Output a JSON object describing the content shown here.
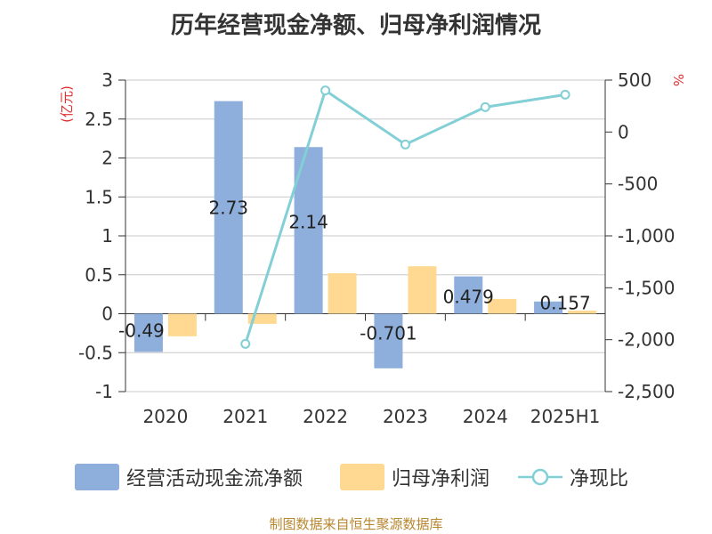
{
  "title": "历年经营现金净额、归母净利润情况",
  "source": "制图数据来自恒生聚源数据库",
  "colors": {
    "cash": "#8eaedb",
    "profit": "#ffd992",
    "ratio": "#82cfd6",
    "unit": "#e03030"
  },
  "chart_data": {
    "type": "bar",
    "categories": [
      "2020",
      "2021",
      "2022",
      "2023",
      "2024",
      "2025H1"
    ],
    "series": [
      {
        "name": "经营活动现金流净额",
        "type": "bar",
        "axis": "left",
        "values": [
          -0.49,
          2.73,
          2.14,
          -0.701,
          0.479,
          0.157
        ],
        "labels": [
          "-0.49",
          "2.73",
          "2.14",
          "-0.701",
          "0.479",
          "0.157"
        ]
      },
      {
        "name": "归母净利润",
        "type": "bar",
        "axis": "left",
        "values": [
          -0.29,
          -0.13,
          0.52,
          0.61,
          0.19,
          0.04
        ]
      },
      {
        "name": "净现比",
        "type": "line",
        "axis": "right",
        "values": [
          null,
          -2040,
          400,
          -120,
          240,
          360
        ]
      }
    ],
    "y_left": {
      "unit": "(亿元)",
      "ylim": [
        -1,
        3
      ],
      "ticks": [
        "3",
        "2.5",
        "2",
        "1.5",
        "1",
        "0.5",
        "0",
        "-0.5",
        "-1"
      ]
    },
    "y_right": {
      "unit": "%",
      "ylim": [
        -2500,
        500
      ],
      "ticks": [
        "500",
        "0",
        "-500",
        "-1,000",
        "-1,500",
        "-2,000",
        "-2,500"
      ]
    },
    "grid": true,
    "legend_position": "bottom"
  }
}
